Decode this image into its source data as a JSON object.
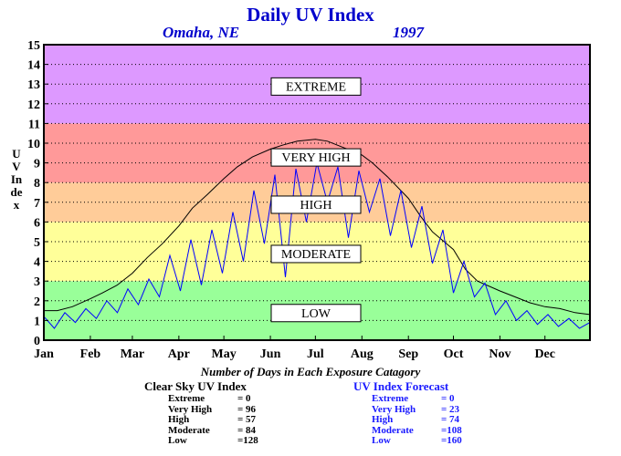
{
  "title": "Daily UV Index",
  "location": "Omaha, NE",
  "year": "1997",
  "colors": {
    "low": "#99ff99",
    "moderate": "#ffff99",
    "high": "#ffcc99",
    "very_high": "#ff9999",
    "extreme": "#dd99ff",
    "clear_sky_line": "#000000",
    "forecast_line": "#0000ff",
    "title": "#0000cc"
  },
  "summary": {
    "heading": "Number of Days in Each Exposure Catagory",
    "clear_sky": {
      "title": "Clear Sky UV Index",
      "rows": [
        {
          "name": "Extreme",
          "value": "=    0"
        },
        {
          "name": "Very High",
          "value": "=  96"
        },
        {
          "name": "High",
          "value": "=  57"
        },
        {
          "name": "Moderate",
          "value": "=  84"
        },
        {
          "name": "Low",
          "value": "=128"
        }
      ]
    },
    "forecast": {
      "title": "UV Index Forecast",
      "rows": [
        {
          "name": "Extreme",
          "value": "=    0"
        },
        {
          "name": "Very High",
          "value": "=  23"
        },
        {
          "name": "High",
          "value": "=  74"
        },
        {
          "name": "Moderate",
          "value": "=108"
        },
        {
          "name": "Low",
          "value": "=160"
        }
      ]
    }
  },
  "chart_data": {
    "type": "line",
    "title": "Daily UV Index",
    "xlabel": "",
    "ylabel": "UV Index",
    "ylim": [
      0,
      15
    ],
    "xlim": [
      1,
      365
    ],
    "grid": true,
    "x_ticks": [
      "Jan",
      "Feb",
      "Mar",
      "Apr",
      "May",
      "Jun",
      "Jul",
      "Aug",
      "Sep",
      "Oct",
      "Nov",
      "Dec"
    ],
    "y_ticks": [
      0,
      1,
      2,
      3,
      4,
      5,
      6,
      7,
      8,
      9,
      10,
      11,
      12,
      13,
      14,
      15
    ],
    "bands": [
      {
        "label": "LOW",
        "from": 0,
        "to": 3,
        "color_key": "low",
        "label_y": 1.4
      },
      {
        "label": "MODERATE",
        "from": 3,
        "to": 6,
        "color_key": "moderate",
        "label_y": 4.4
      },
      {
        "label": "HIGH",
        "from": 6,
        "to": 8,
        "color_key": "high",
        "label_y": 6.9
      },
      {
        "label": "VERY HIGH",
        "from": 8,
        "to": 11,
        "color_key": "very_high",
        "label_y": 9.3
      },
      {
        "label": "EXTREME",
        "from": 11,
        "to": 15,
        "color_key": "extreme",
        "label_y": 12.9
      }
    ],
    "series": [
      {
        "name": "Clear Sky UV Index",
        "color_key": "clear_sky_line",
        "x": [
          1,
          10,
          20,
          32,
          40,
          50,
          60,
          70,
          80,
          91,
          100,
          110,
          121,
          130,
          140,
          152,
          160,
          170,
          182,
          190,
          200,
          213,
          220,
          230,
          244,
          252,
          260,
          274,
          282,
          290,
          305,
          315,
          325,
          335,
          345,
          355,
          365
        ],
        "y": [
          1.5,
          1.5,
          1.7,
          2.1,
          2.4,
          2.8,
          3.4,
          4.2,
          4.9,
          5.8,
          6.7,
          7.4,
          8.2,
          8.8,
          9.3,
          9.7,
          9.9,
          10.1,
          10.2,
          10.1,
          9.8,
          9.4,
          9.0,
          8.3,
          7.2,
          6.3,
          5.5,
          4.6,
          3.6,
          3.0,
          2.5,
          2.2,
          1.9,
          1.7,
          1.6,
          1.4,
          1.3
        ]
      },
      {
        "name": "UV Index Forecast",
        "color_key": "forecast_line",
        "x": [
          1,
          8,
          15,
          22,
          29,
          36,
          43,
          50,
          57,
          64,
          71,
          78,
          85,
          92,
          99,
          106,
          113,
          120,
          127,
          134,
          141,
          148,
          155,
          162,
          169,
          176,
          183,
          190,
          197,
          204,
          211,
          218,
          225,
          232,
          239,
          246,
          253,
          260,
          267,
          274,
          281,
          288,
          295,
          302,
          309,
          316,
          323,
          330,
          337,
          344,
          351,
          358,
          365
        ],
        "y": [
          1.2,
          0.6,
          1.4,
          0.9,
          1.6,
          1.1,
          2.0,
          1.4,
          2.6,
          1.8,
          3.1,
          2.2,
          4.3,
          2.5,
          5.1,
          2.8,
          5.6,
          3.4,
          6.5,
          4.0,
          7.6,
          4.9,
          8.4,
          3.2,
          8.7,
          6.0,
          9.0,
          7.0,
          8.8,
          5.2,
          8.6,
          6.5,
          8.2,
          5.3,
          7.6,
          4.7,
          6.8,
          3.9,
          5.6,
          2.4,
          4.0,
          2.2,
          2.9,
          1.3,
          2.0,
          1.0,
          1.5,
          0.8,
          1.3,
          0.7,
          1.1,
          0.6,
          0.9
        ]
      }
    ]
  }
}
